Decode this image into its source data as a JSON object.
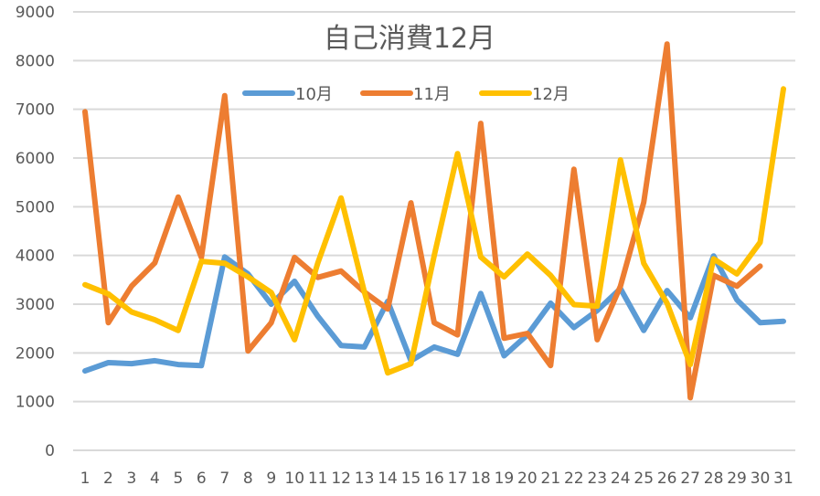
{
  "chart_data": {
    "type": "line",
    "title": "自己消費12月",
    "xlabel": "",
    "ylabel": "",
    "ylim": [
      0,
      9000
    ],
    "yticks": [
      0,
      1000,
      2000,
      3000,
      4000,
      5000,
      6000,
      7000,
      8000,
      9000
    ],
    "grid": true,
    "legend_position": "top",
    "categories": [
      "1",
      "2",
      "3",
      "4",
      "5",
      "6",
      "7",
      "8",
      "9",
      "10",
      "11",
      "12",
      "13",
      "14",
      "15",
      "16",
      "17",
      "18",
      "19",
      "20",
      "21",
      "22",
      "23",
      "24",
      "25",
      "26",
      "27",
      "28",
      "29",
      "30",
      "31"
    ],
    "series": [
      {
        "name": "10月",
        "color": "#5B9BD5",
        "values": [
          1630,
          1800,
          1780,
          1840,
          1760,
          1740,
          3970,
          3620,
          3000,
          3470,
          2750,
          2150,
          2120,
          3060,
          1840,
          2120,
          1970,
          3220,
          1940,
          2370,
          3020,
          2520,
          2870,
          3320,
          2460,
          3280,
          2720,
          3990,
          3090,
          2620,
          2650
        ]
      },
      {
        "name": "11月",
        "color": "#ED7D31",
        "values": [
          6950,
          2620,
          3370,
          3850,
          5200,
          3960,
          7280,
          2040,
          2620,
          3960,
          3550,
          3680,
          3250,
          2900,
          5080,
          2620,
          2370,
          6710,
          2300,
          2400,
          1740,
          5770,
          2270,
          3370,
          5090,
          8340,
          1080,
          3590,
          3370,
          3780,
          null
        ]
      },
      {
        "name": "12月",
        "color": "#FFC000",
        "values": [
          3400,
          3210,
          2840,
          2680,
          2460,
          3880,
          3840,
          3560,
          3240,
          2270,
          3850,
          5180,
          3250,
          1590,
          1780,
          4000,
          6090,
          3970,
          3560,
          4030,
          3590,
          2990,
          2960,
          5960,
          3840,
          3020,
          1760,
          3930,
          3620,
          4270,
          7420
        ]
      }
    ]
  }
}
